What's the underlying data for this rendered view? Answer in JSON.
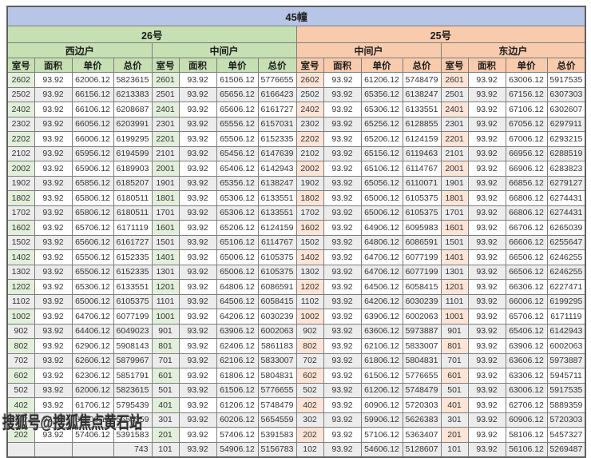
{
  "header": {
    "building_title": "45幢"
  },
  "sections": [
    {
      "label": "26号",
      "theme": "green",
      "wings": [
        "西边户",
        "中间户"
      ]
    },
    {
      "label": "25号",
      "theme": "orange",
      "wings": [
        "中间户",
        "东边户"
      ]
    }
  ],
  "columns": [
    "室号",
    "面积",
    "单价",
    "总价"
  ],
  "rows": [
    [
      [
        "2602",
        "93.92",
        "62006.12",
        "5823615"
      ],
      [
        "2601",
        "93.92",
        "61506.12",
        "5776655"
      ],
      [
        "2602",
        "93.92",
        "61206.12",
        "5748479"
      ],
      [
        "2601",
        "93.92",
        "63006.12",
        "5917535"
      ]
    ],
    [
      [
        "2502",
        "93.92",
        "66156.12",
        "6213383"
      ],
      [
        "2501",
        "93.92",
        "65656.12",
        "6166423"
      ],
      [
        "2502",
        "93.92",
        "65356.12",
        "6138247"
      ],
      [
        "2501",
        "93.92",
        "67156.12",
        "6307303"
      ]
    ],
    [
      [
        "2402",
        "93.92",
        "66106.12",
        "6208687"
      ],
      [
        "2401",
        "93.92",
        "65606.12",
        "6161727"
      ],
      [
        "2402",
        "93.92",
        "65306.12",
        "6133551"
      ],
      [
        "2401",
        "93.92",
        "67106.12",
        "6302607"
      ]
    ],
    [
      [
        "2302",
        "93.92",
        "66056.12",
        "6203991"
      ],
      [
        "2301",
        "93.92",
        "65556.12",
        "6157031"
      ],
      [
        "2302",
        "93.92",
        "65256.12",
        "6128855"
      ],
      [
        "2301",
        "93.92",
        "67056.12",
        "6297911"
      ]
    ],
    [
      [
        "2202",
        "93.92",
        "66006.12",
        "6199295"
      ],
      [
        "2201",
        "93.92",
        "65506.12",
        "6152335"
      ],
      [
        "2202",
        "93.92",
        "65206.12",
        "6124159"
      ],
      [
        "2201",
        "93.92",
        "67006.12",
        "6293215"
      ]
    ],
    [
      [
        "2102",
        "93.92",
        "65956.12",
        "6194599"
      ],
      [
        "2101",
        "93.92",
        "65456.12",
        "6147639"
      ],
      [
        "2102",
        "93.92",
        "65156.12",
        "6119463"
      ],
      [
        "2101",
        "93.92",
        "66956.12",
        "6288519"
      ]
    ],
    [
      [
        "2002",
        "93.92",
        "65906.12",
        "6189903"
      ],
      [
        "2001",
        "93.92",
        "65406.12",
        "6142943"
      ],
      [
        "2002",
        "93.92",
        "65106.12",
        "6114767"
      ],
      [
        "2001",
        "93.92",
        "66906.12",
        "6283823"
      ]
    ],
    [
      [
        "1902",
        "93.92",
        "65856.12",
        "6185207"
      ],
      [
        "1901",
        "93.92",
        "65356.12",
        "6138247"
      ],
      [
        "1902",
        "93.92",
        "65056.12",
        "6110071"
      ],
      [
        "1901",
        "93.92",
        "66856.12",
        "6279127"
      ]
    ],
    [
      [
        "1802",
        "93.92",
        "65806.12",
        "6180511"
      ],
      [
        "1801",
        "93.92",
        "65306.12",
        "6133551"
      ],
      [
        "1802",
        "93.92",
        "65006.12",
        "6105375"
      ],
      [
        "1801",
        "93.92",
        "66806.12",
        "6274431"
      ]
    ],
    [
      [
        "1702",
        "93.92",
        "65806.12",
        "6180511"
      ],
      [
        "1701",
        "93.92",
        "65306.12",
        "6133551"
      ],
      [
        "1702",
        "93.92",
        "65006.12",
        "6105375"
      ],
      [
        "1701",
        "93.92",
        "66806.12",
        "6274431"
      ]
    ],
    [
      [
        "1602",
        "93.92",
        "65706.12",
        "6171119"
      ],
      [
        "1601",
        "93.92",
        "65206.12",
        "6124159"
      ],
      [
        "1602",
        "93.92",
        "64906.12",
        "6095983"
      ],
      [
        "1601",
        "93.92",
        "66706.12",
        "6265039"
      ]
    ],
    [
      [
        "1502",
        "93.92",
        "65606.12",
        "6161727"
      ],
      [
        "1501",
        "93.92",
        "65106.12",
        "6114767"
      ],
      [
        "1502",
        "93.92",
        "64806.12",
        "6086591"
      ],
      [
        "1501",
        "93.92",
        "66606.12",
        "6255647"
      ]
    ],
    [
      [
        "1402",
        "93.92",
        "65506.12",
        "6152335"
      ],
      [
        "1401",
        "93.92",
        "65006.12",
        "6105375"
      ],
      [
        "1402",
        "93.92",
        "64706.12",
        "6077199"
      ],
      [
        "1401",
        "93.92",
        "66506.12",
        "6246255"
      ]
    ],
    [
      [
        "1302",
        "93.92",
        "65506.12",
        "6152335"
      ],
      [
        "1301",
        "93.92",
        "65006.12",
        "6105375"
      ],
      [
        "1302",
        "93.92",
        "64706.12",
        "6077199"
      ],
      [
        "1301",
        "93.92",
        "66506.12",
        "6246255"
      ]
    ],
    [
      [
        "1202",
        "93.92",
        "65306.12",
        "6133551"
      ],
      [
        "1201",
        "93.92",
        "64806.12",
        "6086591"
      ],
      [
        "1202",
        "93.92",
        "64506.12",
        "6058415"
      ],
      [
        "1201",
        "93.92",
        "66306.12",
        "6227471"
      ]
    ],
    [
      [
        "1102",
        "93.92",
        "65006.12",
        "6105375"
      ],
      [
        "1101",
        "93.92",
        "64506.12",
        "6058415"
      ],
      [
        "1102",
        "93.92",
        "64206.12",
        "6030239"
      ],
      [
        "1101",
        "93.92",
        "66006.12",
        "6199295"
      ]
    ],
    [
      [
        "1002",
        "93.92",
        "64706.12",
        "6077199"
      ],
      [
        "1001",
        "93.92",
        "64206.12",
        "6030239"
      ],
      [
        "1002",
        "93.92",
        "63906.12",
        "6002063"
      ],
      [
        "1001",
        "93.92",
        "65706.12",
        "6171119"
      ]
    ],
    [
      [
        "902",
        "93.92",
        "64406.12",
        "6049023"
      ],
      [
        "901",
        "93.92",
        "63906.12",
        "6002063"
      ],
      [
        "902",
        "93.92",
        "63606.12",
        "5973887"
      ],
      [
        "901",
        "93.92",
        "65406.12",
        "6142943"
      ]
    ],
    [
      [
        "802",
        "93.92",
        "62906.12",
        "5908143"
      ],
      [
        "801",
        "93.92",
        "62406.12",
        "5861183"
      ],
      [
        "802",
        "93.92",
        "62106.12",
        "5833007"
      ],
      [
        "801",
        "93.92",
        "63906.12",
        "6002063"
      ]
    ],
    [
      [
        "702",
        "93.92",
        "62606.12",
        "5879967"
      ],
      [
        "701",
        "93.92",
        "62106.12",
        "5833007"
      ],
      [
        "702",
        "93.92",
        "61806.12",
        "5804831"
      ],
      [
        "701",
        "93.92",
        "63606.12",
        "5973887"
      ]
    ],
    [
      [
        "602",
        "93.92",
        "62306.12",
        "5851791"
      ],
      [
        "601",
        "93.92",
        "61806.12",
        "5804831"
      ],
      [
        "602",
        "93.92",
        "61506.12",
        "5776655"
      ],
      [
        "601",
        "93.92",
        "63306.12",
        "5945711"
      ]
    ],
    [
      [
        "502",
        "93.92",
        "62006.12",
        "5823615"
      ],
      [
        "501",
        "93.92",
        "61506.12",
        "5776655"
      ],
      [
        "502",
        "93.92",
        "61206.12",
        "5748479"
      ],
      [
        "501",
        "93.92",
        "63006.12",
        "5917535"
      ]
    ],
    [
      [
        "402",
        "93.92",
        "61706.12",
        "5795439"
      ],
      [
        "401",
        "93.92",
        "61206.12",
        "5748479"
      ],
      [
        "402",
        "93.92",
        "60906.12",
        "5720303"
      ],
      [
        "401",
        "93.92",
        "62706.12",
        "5889359"
      ]
    ],
    [
      [
        "302",
        "93.92",
        "60206.12",
        "5654559"
      ],
      [
        "301",
        "93.92",
        "60206.12",
        "5654559"
      ],
      [
        "302",
        "93.92",
        "59906.12",
        "5626383"
      ],
      [
        "301",
        "93.92",
        "60906.12",
        "5720303"
      ]
    ],
    [
      [
        "202",
        "93.92",
        "57406.12",
        "5391583"
      ],
      [
        "201",
        "93.92",
        "57406.12",
        "5391583"
      ],
      [
        "202",
        "93.92",
        "57106.12",
        "5363407"
      ],
      [
        "201",
        "93.92",
        "58106.12",
        "5457327"
      ]
    ],
    [
      [
        "",
        "",
        "",
        "743"
      ],
      [
        "101",
        "93.92",
        "54906.12",
        "5156783"
      ],
      [
        "102",
        "93.92",
        "54606.12",
        "5128607"
      ],
      [
        "101",
        "93.92",
        "56106.12",
        "5269487"
      ]
    ]
  ],
  "watermark": {
    "text": "搜狐号@搜狐焦点黄石站"
  },
  "colors": {
    "blue": "#b7c5e6",
    "green": "#c6e0b4",
    "greenL": "#e2efda",
    "orange": "#f8cbad",
    "orangeL": "#fce4d6",
    "stripe": "#ececec"
  }
}
